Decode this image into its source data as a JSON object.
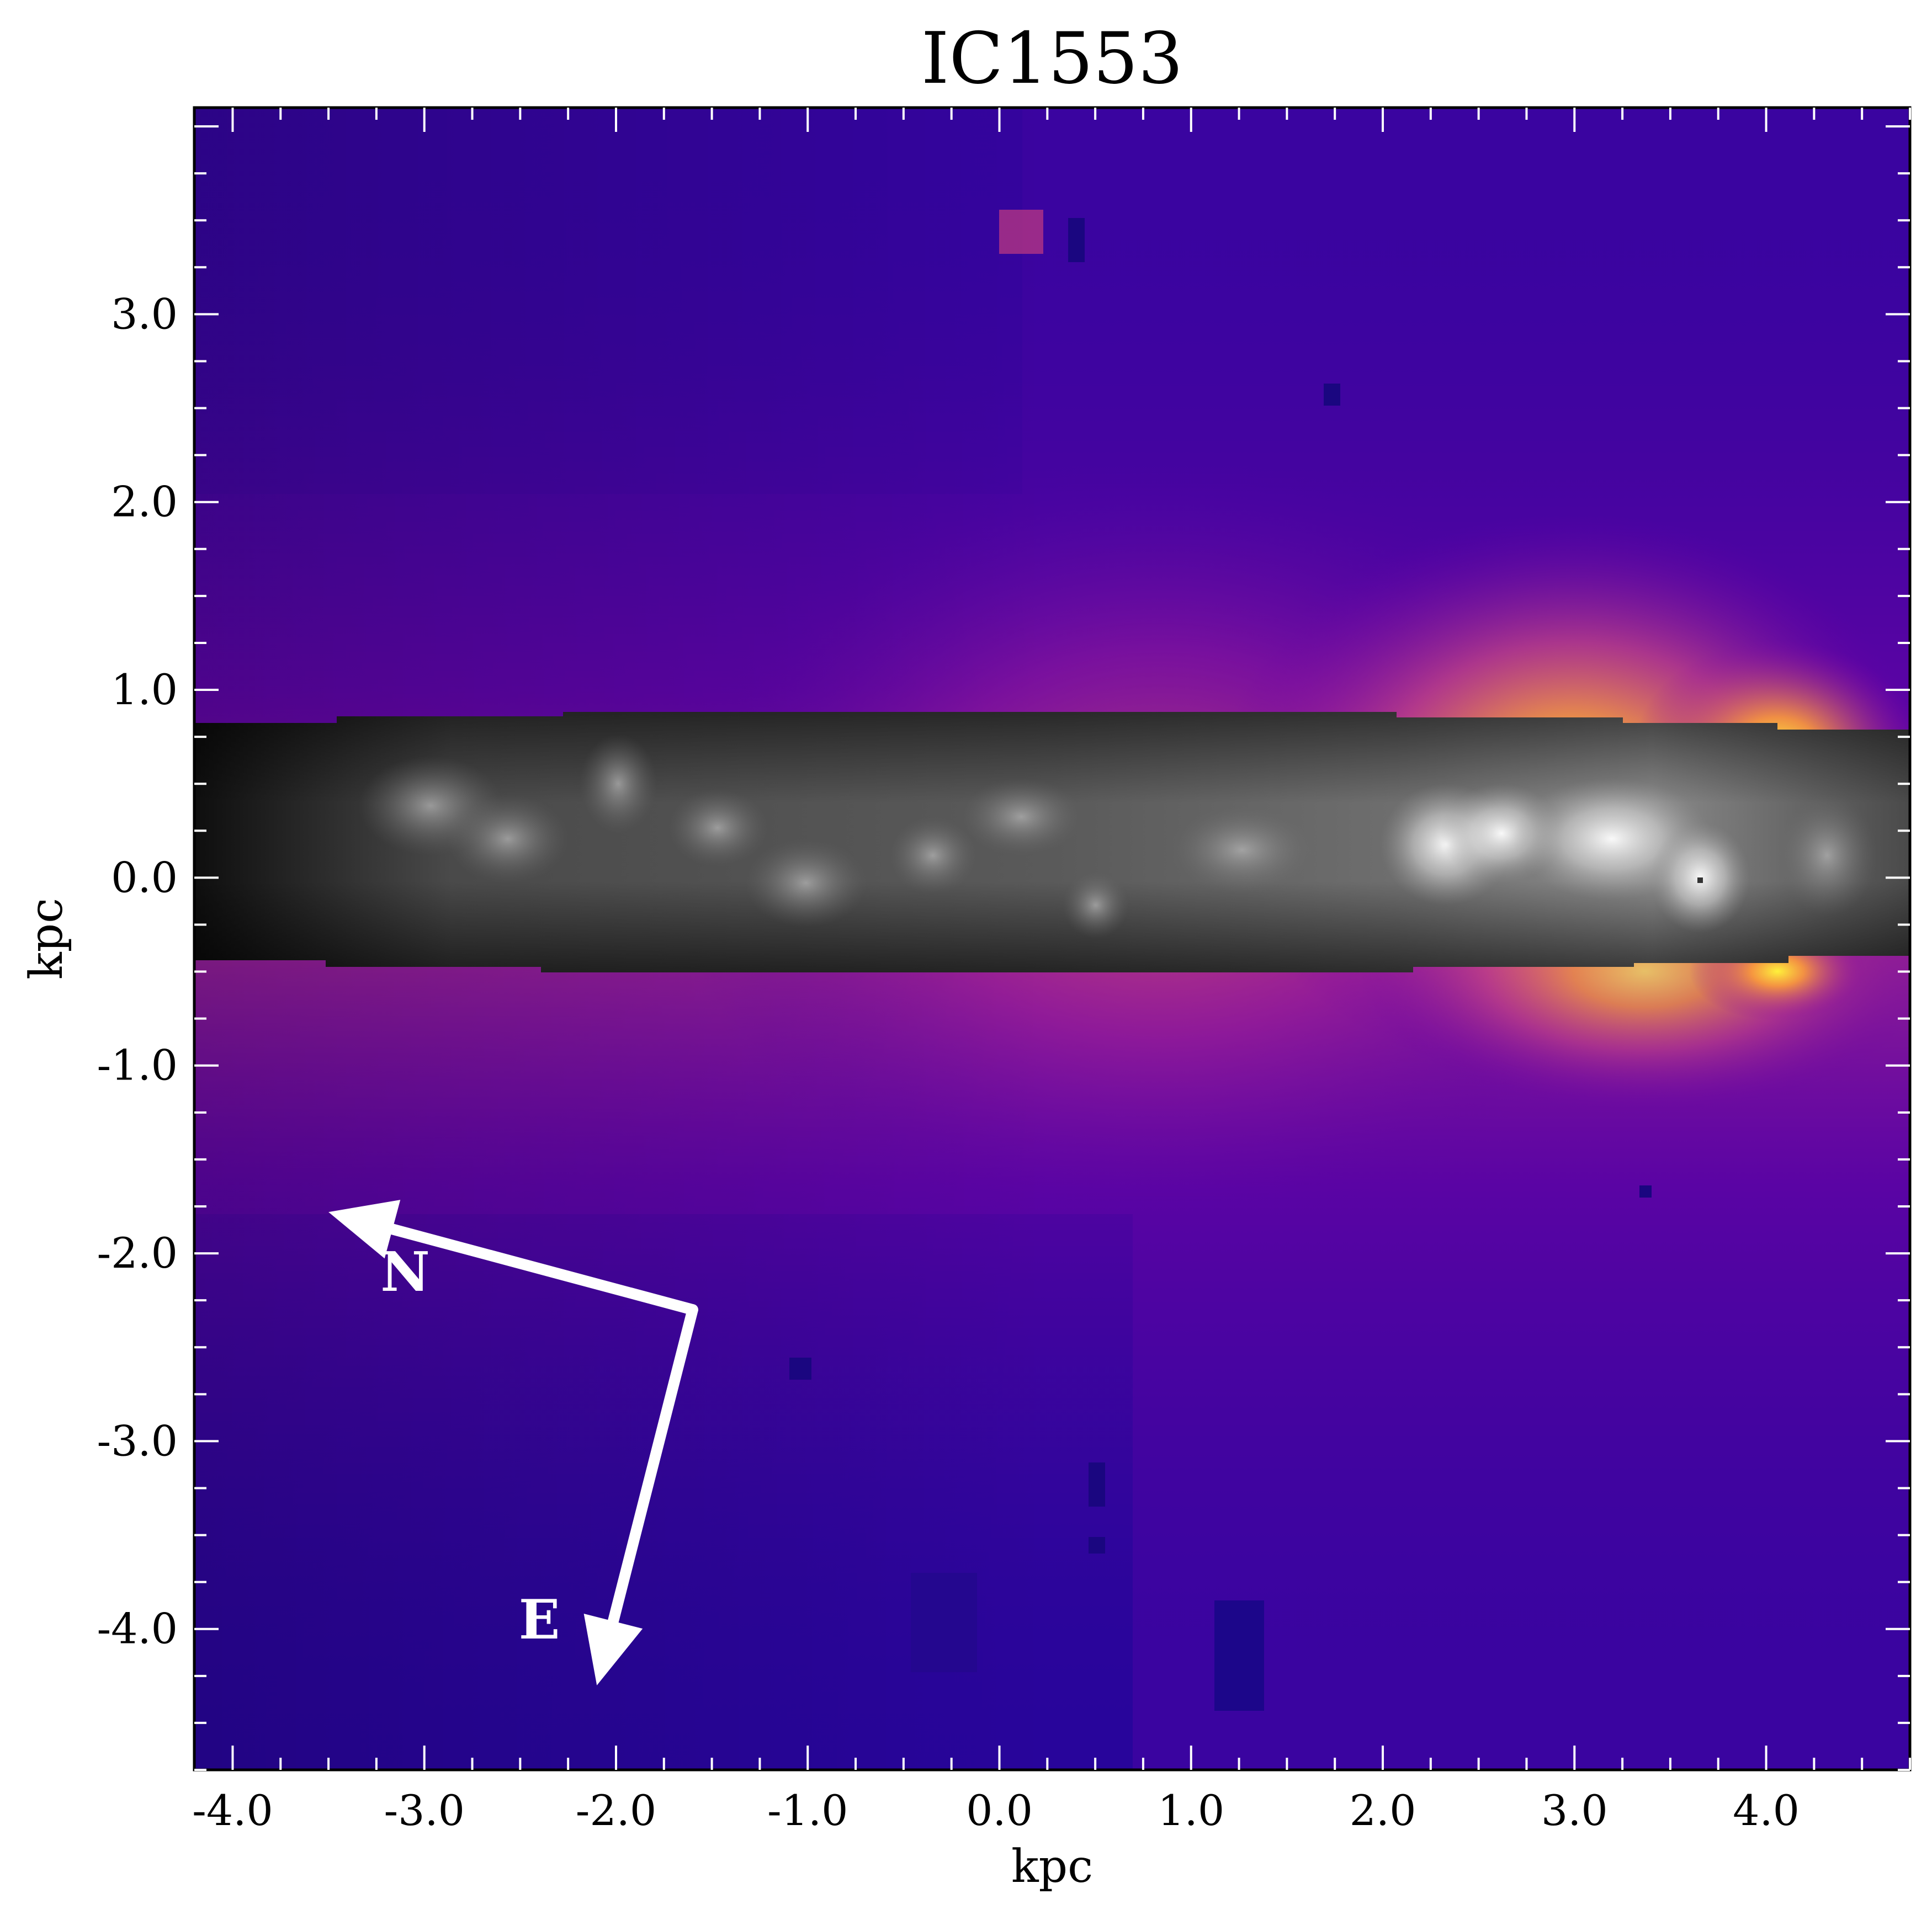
{
  "chart_data": {
    "type": "heatmap",
    "title": "IC1553",
    "xlabel": "kpc",
    "ylabel": "kpc",
    "xlim": [
      -4.2,
      4.75
    ],
    "ylim": [
      -4.75,
      4.1
    ],
    "xticks": [
      -4.0,
      -3.0,
      -2.0,
      -1.0,
      0.0,
      1.0,
      2.0,
      3.0,
      4.0
    ],
    "xtick_labels": [
      "-4.0",
      "-3.0",
      "-2.0",
      "-1.0",
      "0.0",
      "1.0",
      "2.0",
      "3.0",
      "4.0"
    ],
    "yticks": [
      3.0,
      2.0,
      1.0,
      0.0,
      -1.0,
      -2.0,
      -3.0,
      -4.0
    ],
    "ytick_labels": [
      "3.0",
      "2.0",
      "1.0",
      "0.0",
      "-1.0",
      "-2.0",
      "-3.0",
      "-4.0"
    ],
    "colormap": "plasma",
    "overlay_colormap": "gray",
    "grid": false,
    "masked_band": {
      "x": [
        -4.2,
        4.75
      ],
      "y": [
        -0.5,
        0.85
      ]
    },
    "compass": {
      "origin": [
        -1.6,
        -2.3
      ],
      "north_tip": [
        -3.5,
        -1.78
      ],
      "east_tip": [
        -2.1,
        -4.3
      ],
      "north_label": "N",
      "east_label": "E",
      "north_label_pos": [
        -3.1,
        -2.2
      ],
      "east_label_pos": [
        -2.4,
        -4.05
      ]
    }
  }
}
